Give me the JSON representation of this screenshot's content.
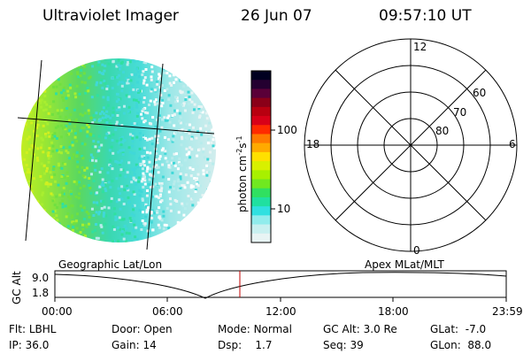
{
  "header": {
    "instrument": "Ultraviolet Imager",
    "date": "26 Jun 07",
    "time": "09:57:10 UT"
  },
  "colorbar": {
    "unit_label": "photon cm",
    "unit_exp1": "-2",
    "unit_s": "s",
    "unit_exp2": "-1",
    "ticks": [
      "100",
      "10"
    ],
    "colors": [
      "#000020",
      "#240030",
      "#5a0038",
      "#8a0018",
      "#b80010",
      "#d80018",
      "#ff2a00",
      "#ff7a00",
      "#ffaa00",
      "#ffe000",
      "#d8f000",
      "#a8f000",
      "#70e820",
      "#30e060",
      "#20e0a0",
      "#30e0e0",
      "#90ecec",
      "#c8f0f0",
      "#e8f4f4"
    ]
  },
  "polar": {
    "mlt_labels": {
      "top": "12",
      "left": "18",
      "right": "6",
      "bottom": "0"
    },
    "lat_labels": [
      "60",
      "70",
      "80"
    ]
  },
  "timeline": {
    "left_label": "Geographic Lat/Lon",
    "right_label": "Apex MLat/MLT",
    "axis_label": "GC Alt",
    "y_ticks": [
      "9.0",
      "1.8"
    ],
    "x_ticks": [
      "00:00",
      "06:00",
      "12:00",
      "18:00",
      "23:59"
    ]
  },
  "info": {
    "row1": [
      {
        "label": "Flt:",
        "value": "LBHL"
      },
      {
        "label": "Door:",
        "value": "Open"
      },
      {
        "label": "Mode:",
        "value": "Normal"
      },
      {
        "label": "GC Alt:",
        "value": "3.0 Re"
      },
      {
        "label": "GLat:",
        "value": "-7.0"
      }
    ],
    "row2": [
      {
        "label": "IP:",
        "value": "36.0"
      },
      {
        "label": "Gain:",
        "value": "14"
      },
      {
        "label": "Dsp:",
        "value": "1.7"
      },
      {
        "label": "Seq:",
        "value": "39"
      },
      {
        "label": "GLon:",
        "value": "88.0"
      }
    ]
  }
}
